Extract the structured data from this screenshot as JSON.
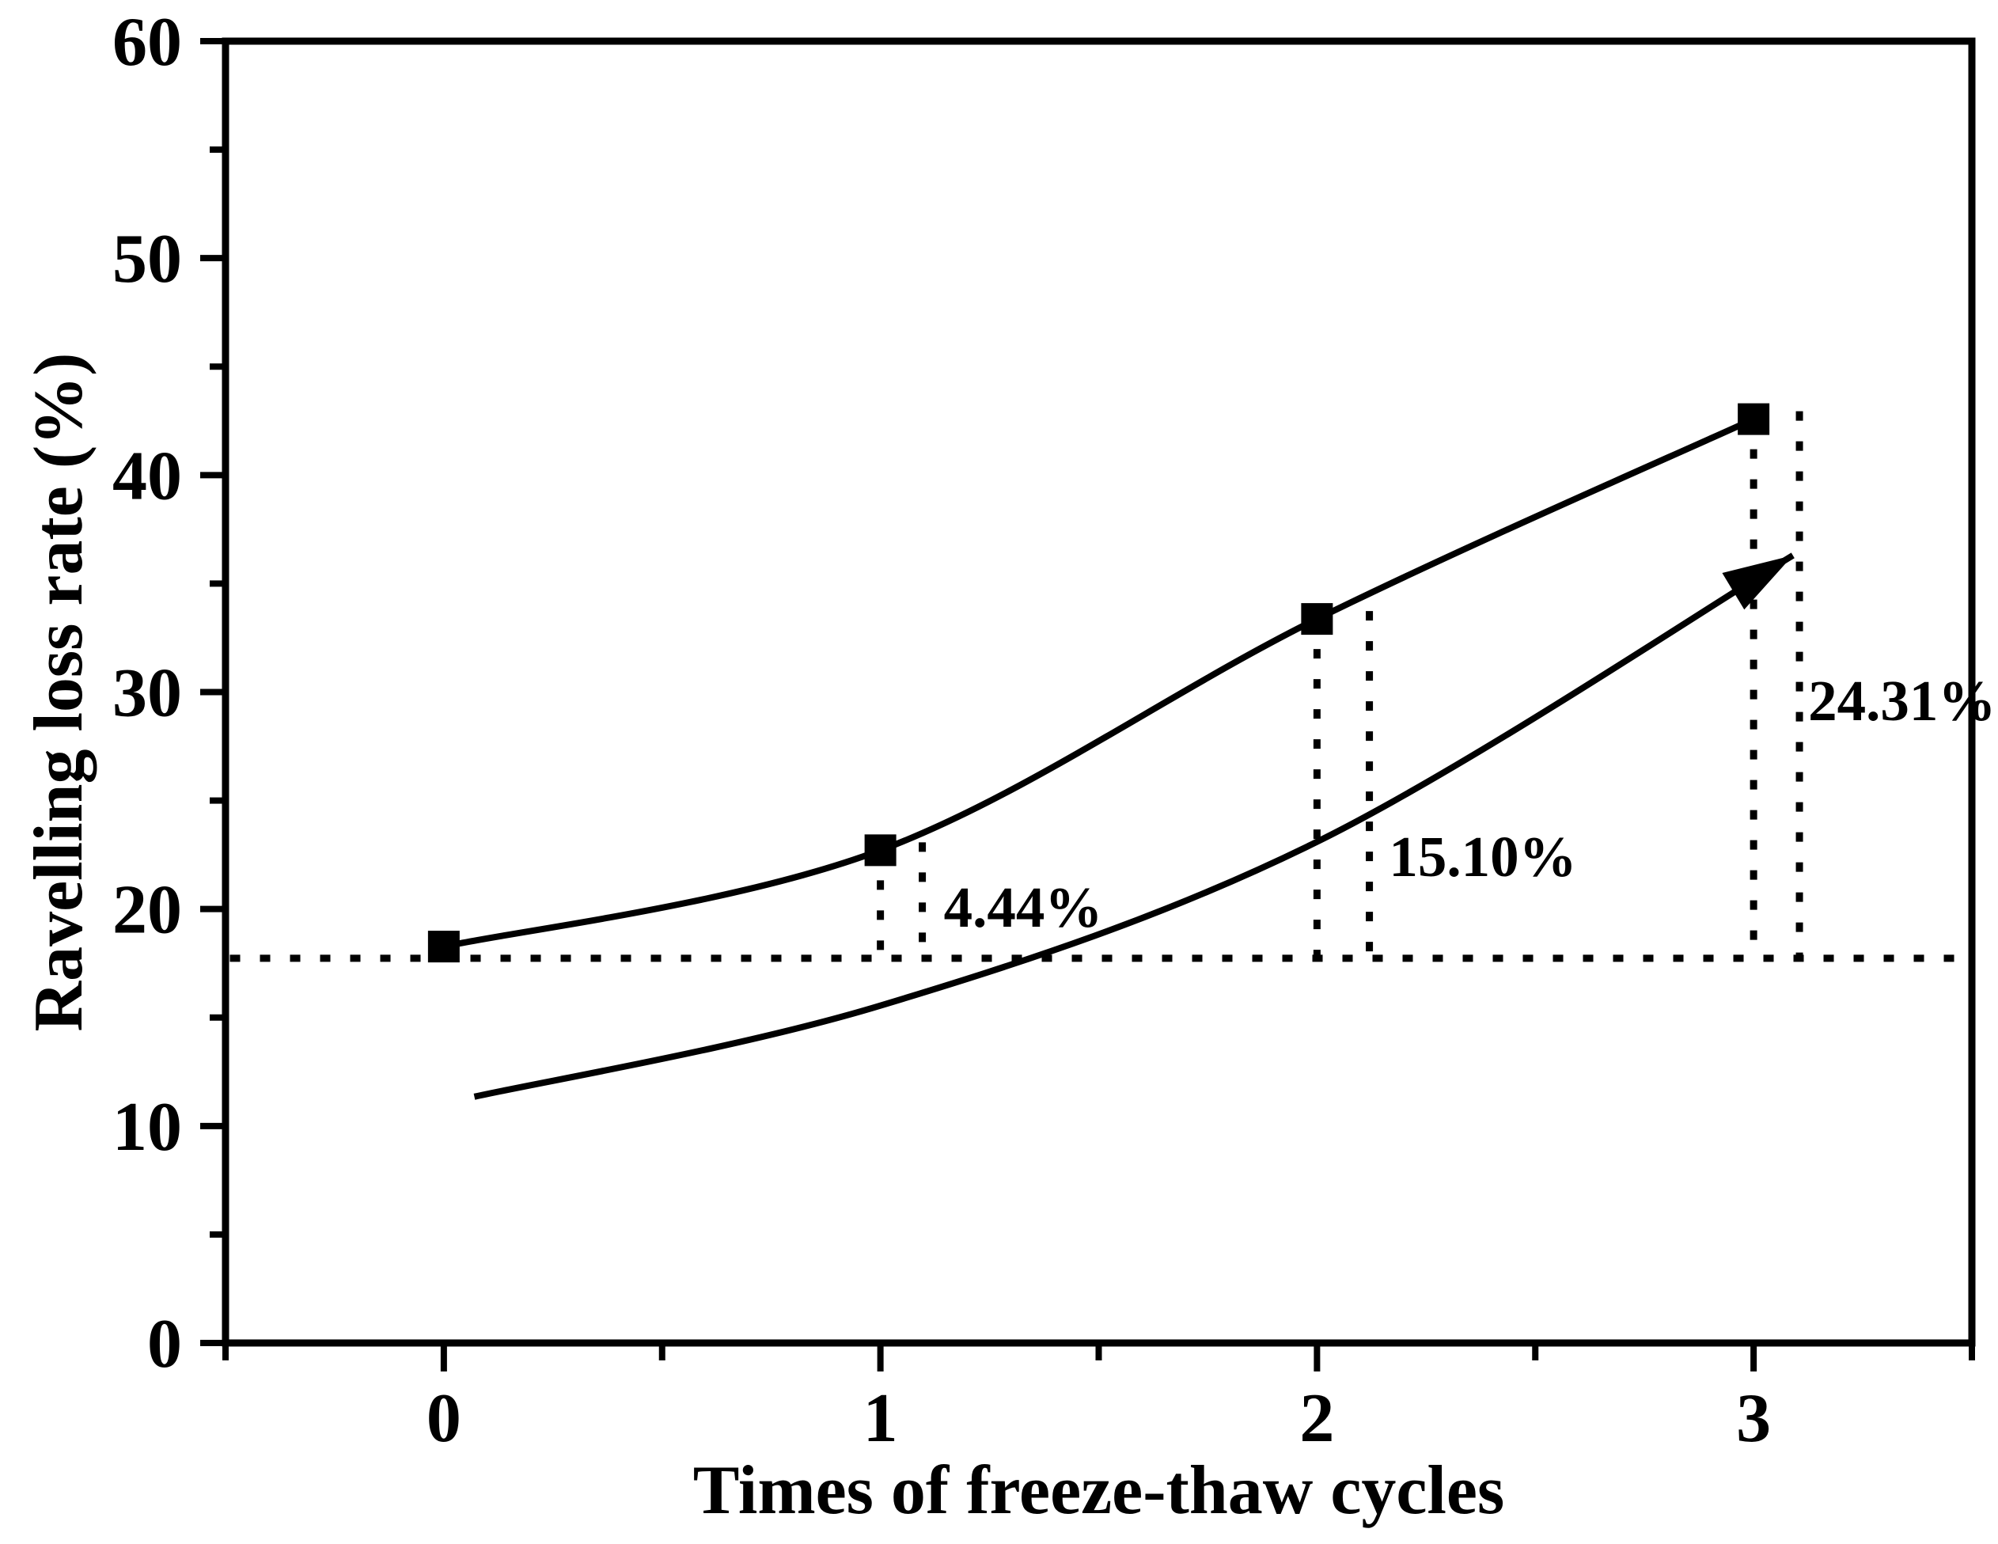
{
  "chart_data": {
    "type": "line",
    "title": "",
    "xlabel": "Times of freeze-thaw cycles",
    "ylabel": "Ravelling loss rate (%)",
    "xlim": [
      -0.5,
      3.5
    ],
    "ylim": [
      0,
      60
    ],
    "grid": false,
    "legend": "none",
    "x_ticks": [
      "0",
      "1",
      "2",
      "3"
    ],
    "x_tick_values": [
      0,
      1,
      2,
      3
    ],
    "x_minor_tick_values": [
      -0.5,
      0.5,
      1.5,
      2.5,
      3.5
    ],
    "y_ticks": [
      "0",
      "10",
      "20",
      "30",
      "40",
      "50",
      "60"
    ],
    "y_tick_values": [
      0,
      10,
      20,
      30,
      40,
      50,
      60
    ],
    "y_minor_tick_values": [
      5,
      15,
      25,
      35,
      45,
      55
    ],
    "series": [
      {
        "name": "ravelling loss rate",
        "marker": "filled-square",
        "x": [
          0,
          1,
          2,
          3
        ],
        "values": [
          18.27,
          22.71,
          33.37,
          42.58
        ]
      }
    ],
    "baseline": {
      "y": 17.73,
      "x_start": -0.49,
      "x_end": 3.49,
      "style": "dotted"
    },
    "drop_line_pairs": [
      {
        "x_left": 1.0,
        "x_right": 1.096,
        "y_top": 22.71,
        "y_bottom": 17.73
      },
      {
        "x_left": 2.0,
        "x_right": 2.12,
        "y_top": 33.37,
        "y_bottom": 17.73
      },
      {
        "x_left": 3.0,
        "x_right": 3.105,
        "y_top": 42.58,
        "y_bottom": 17.73
      }
    ],
    "annotations": [
      {
        "text": "4.44%",
        "x": 1.145,
        "y": 20.1
      },
      {
        "text": "15.10%",
        "x": 2.165,
        "y": 22.43
      },
      {
        "text": "24.31%",
        "x": 3.125,
        "y": 29.62
      }
    ],
    "arrow_curve": {
      "points": [
        [
          0.07,
          11.35
        ],
        [
          1.0,
          15.55
        ],
        [
          2.0,
          23.1
        ],
        [
          3.09,
          36.3
        ]
      ]
    },
    "colors": {
      "foreground": "#000000",
      "background": "#ffffff"
    }
  }
}
